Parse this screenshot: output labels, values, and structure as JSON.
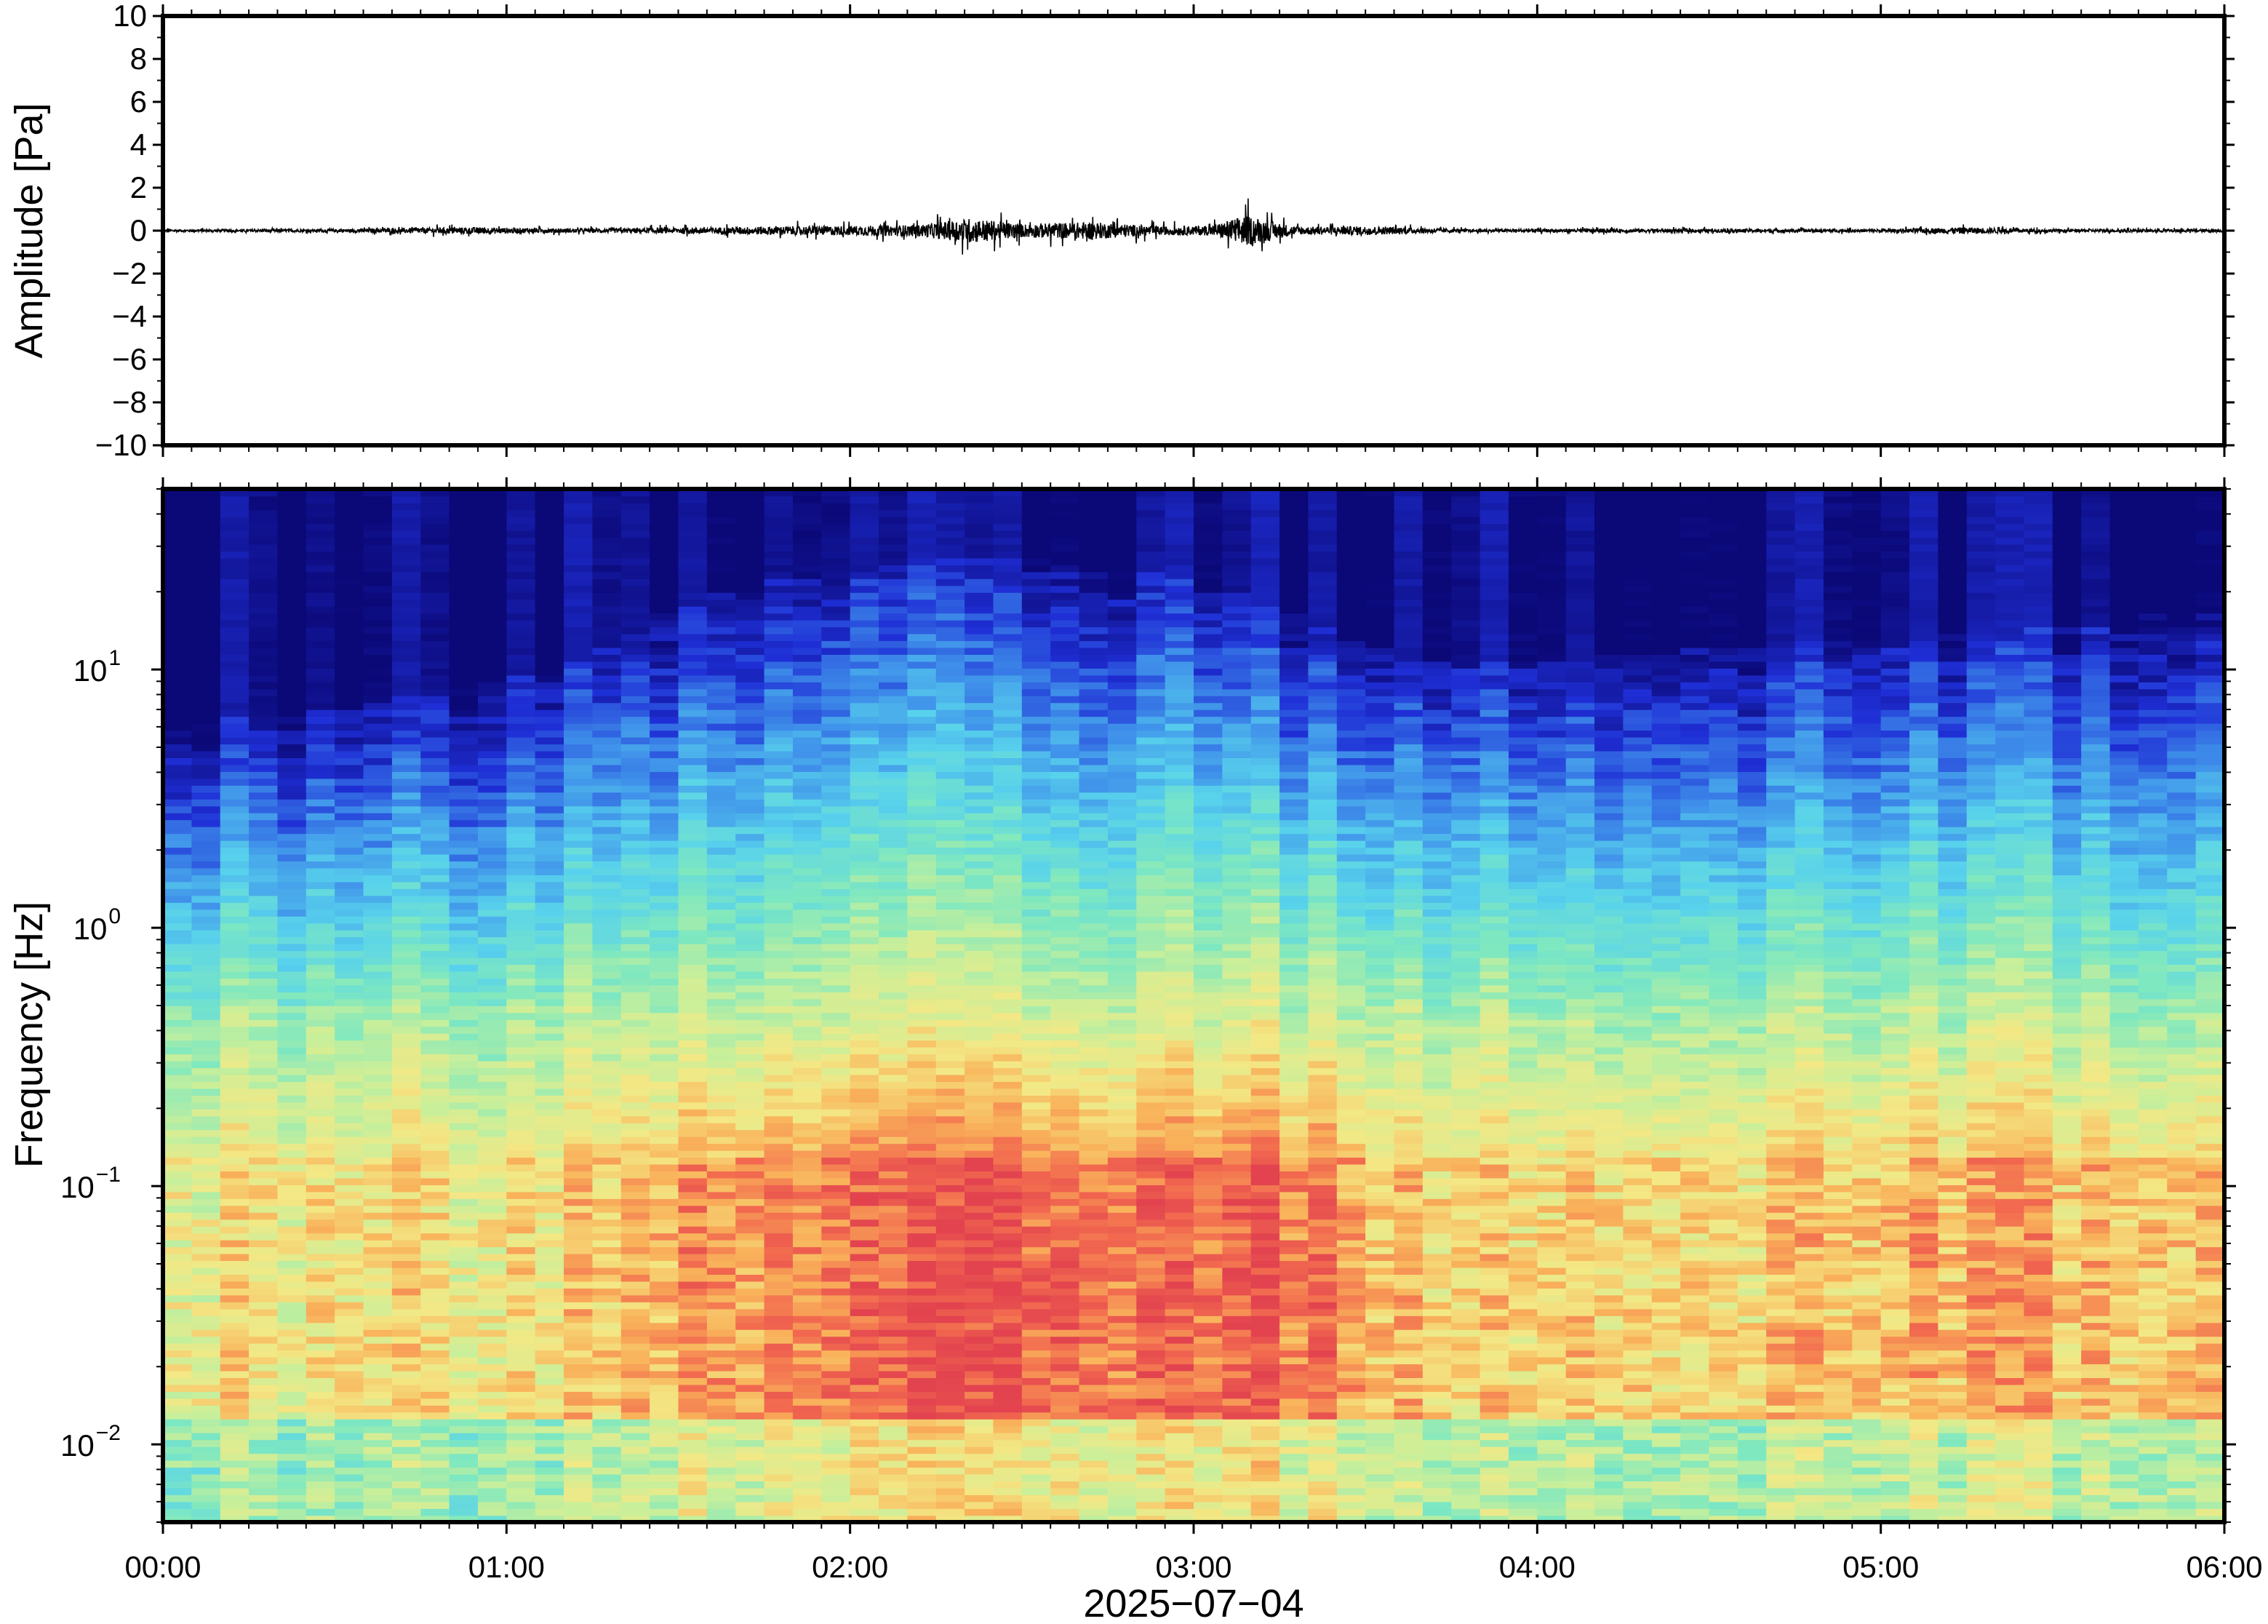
{
  "chart_data": [
    {
      "type": "line",
      "panel": "waveform",
      "ylabel": "Amplitude [Pa]",
      "ylim": [
        -10,
        10
      ],
      "yticks": [
        10,
        8,
        6,
        4,
        2,
        0,
        -2,
        -4,
        -6,
        -8,
        -10
      ],
      "ytick_labels": [
        "10",
        "8",
        "6",
        "4",
        "2",
        "0",
        "−2",
        "−4",
        "−6",
        "−8",
        "−10"
      ],
      "xlim_hours": [
        0,
        6
      ],
      "trace_color": "#000000",
      "envelope": {
        "t_hours": [
          0.0,
          0.5,
          0.9,
          1.2,
          1.5,
          1.8,
          2.0,
          2.2,
          2.35,
          2.5,
          2.7,
          2.9,
          3.05,
          3.15,
          3.3,
          3.5,
          3.8,
          4.2,
          4.6,
          5.0,
          5.25,
          5.5,
          6.0
        ],
        "max_abs_pa": [
          0.12,
          0.15,
          0.35,
          0.2,
          0.3,
          0.45,
          0.5,
          0.6,
          1.3,
          0.7,
          0.9,
          0.45,
          0.5,
          1.6,
          0.4,
          0.45,
          0.15,
          0.2,
          0.18,
          0.15,
          0.35,
          0.15,
          0.15
        ]
      }
    },
    {
      "type": "heatmap",
      "panel": "spectrogram",
      "ylabel": "Frequency [Hz]",
      "yscale": "log",
      "ylim_hz": [
        0.005,
        50
      ],
      "ytick_labels": [
        {
          "base": "10",
          "exp": "1",
          "value": 10
        },
        {
          "base": "10",
          "exp": "0",
          "value": 1
        },
        {
          "base": "10",
          "exp": "−1",
          "value": 0.1
        },
        {
          "base": "10",
          "exp": "−2",
          "value": 0.01
        }
      ],
      "xlabel": "2025−07−04",
      "xticks": [
        "00:00",
        "01:00",
        "02:00",
        "03:00",
        "04:00",
        "05:00",
        "06:00"
      ],
      "xlim_hours": [
        0,
        6
      ],
      "colormap": [
        "#0b0877",
        "#1f2fd6",
        "#3f90ea",
        "#58d2ec",
        "#7ee8c0",
        "#c9ef9a",
        "#f3e885",
        "#f9b25a",
        "#f26a4f",
        "#e2434f"
      ],
      "activity": {
        "t_hours": [
          0.0,
          0.5,
          1.0,
          1.3,
          1.5,
          1.8,
          2.0,
          2.2,
          2.4,
          2.6,
          2.8,
          3.0,
          3.2,
          3.4,
          3.55,
          3.8,
          4.2,
          4.6,
          5.0,
          5.3,
          5.6,
          6.0
        ],
        "level": [
          0.25,
          0.3,
          0.3,
          0.35,
          0.6,
          0.65,
          0.7,
          0.78,
          0.85,
          0.82,
          0.75,
          0.72,
          0.8,
          0.7,
          0.45,
          0.3,
          0.4,
          0.38,
          0.42,
          0.5,
          0.48,
          0.5
        ]
      },
      "upper_noise_ceiling_hz": {
        "t_hours": [
          0.0,
          0.5,
          1.0,
          1.3,
          1.6,
          2.0,
          2.3,
          2.6,
          3.0,
          3.3,
          3.6,
          4.0,
          4.5,
          5.0,
          5.5,
          6.0
        ],
        "freq_hz": [
          6,
          7,
          9,
          12,
          20,
          24,
          28,
          26,
          22,
          16,
          11,
          11,
          12,
          13,
          15,
          17
        ]
      }
    }
  ]
}
